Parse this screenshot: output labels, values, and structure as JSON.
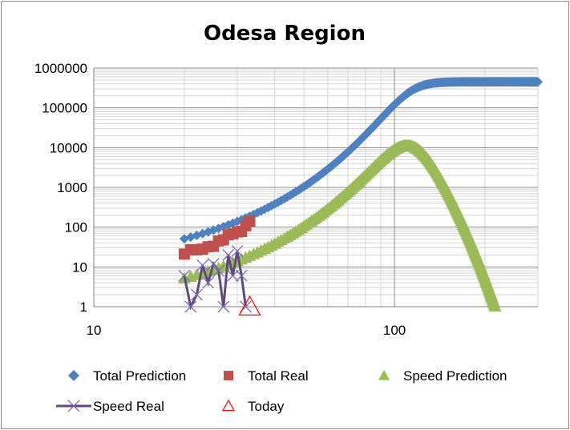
{
  "chart_data": {
    "type": "scatter",
    "title": "Odesa Region",
    "xlabel": "",
    "ylabel": "",
    "x_scale": "log",
    "y_scale": "log",
    "xlim": [
      10,
      300
    ],
    "ylim": [
      1,
      1000000
    ],
    "x_ticks": [
      10,
      100
    ],
    "x_tick_labels": [
      "10",
      "100"
    ],
    "y_ticks": [
      1,
      10,
      100,
      1000,
      10000,
      100000,
      1000000
    ],
    "y_tick_labels": [
      "1",
      "10",
      "100",
      "1000",
      "10000",
      "100000",
      "1000000"
    ],
    "grid": true,
    "legend_position": "bottom",
    "series": [
      {
        "name": "Total Prediction",
        "marker": "diamond",
        "color": "#4F81BD",
        "model": "logistic",
        "params": {
          "capacity": 450000,
          "midpoint_day": 110,
          "rate": 0.101,
          "start": 20,
          "end": 300
        }
      },
      {
        "name": "Total Real",
        "marker": "square",
        "color": "#C0504D",
        "x": [
          20,
          21,
          22,
          23,
          24,
          25,
          26,
          27,
          28,
          29,
          30,
          31,
          32,
          33
        ],
        "y": [
          21,
          27,
          27,
          28,
          32,
          33,
          45,
          48,
          64,
          68,
          76,
          78,
          108,
          140
        ]
      },
      {
        "name": "Speed Prediction",
        "marker": "triangle",
        "color": "#9BBB59",
        "model": "logistic_rate",
        "params": {
          "capacity": 450000,
          "midpoint_day": 110,
          "rate": 0.101,
          "start": 20,
          "end": 300
        }
      },
      {
        "name": "Speed Real",
        "marker": "x-line",
        "color": "#604A7B",
        "x": [
          20,
          21,
          22,
          23,
          24,
          25,
          26,
          27,
          28,
          29,
          30,
          31,
          32
        ],
        "y": [
          6,
          1,
          2,
          11,
          4,
          12,
          8,
          1,
          20,
          6,
          25,
          6,
          1
        ]
      },
      {
        "name": "Today",
        "marker": "open-triangle",
        "color": "#FF0000",
        "x": [
          33
        ],
        "y": [
          1
        ]
      }
    ]
  }
}
